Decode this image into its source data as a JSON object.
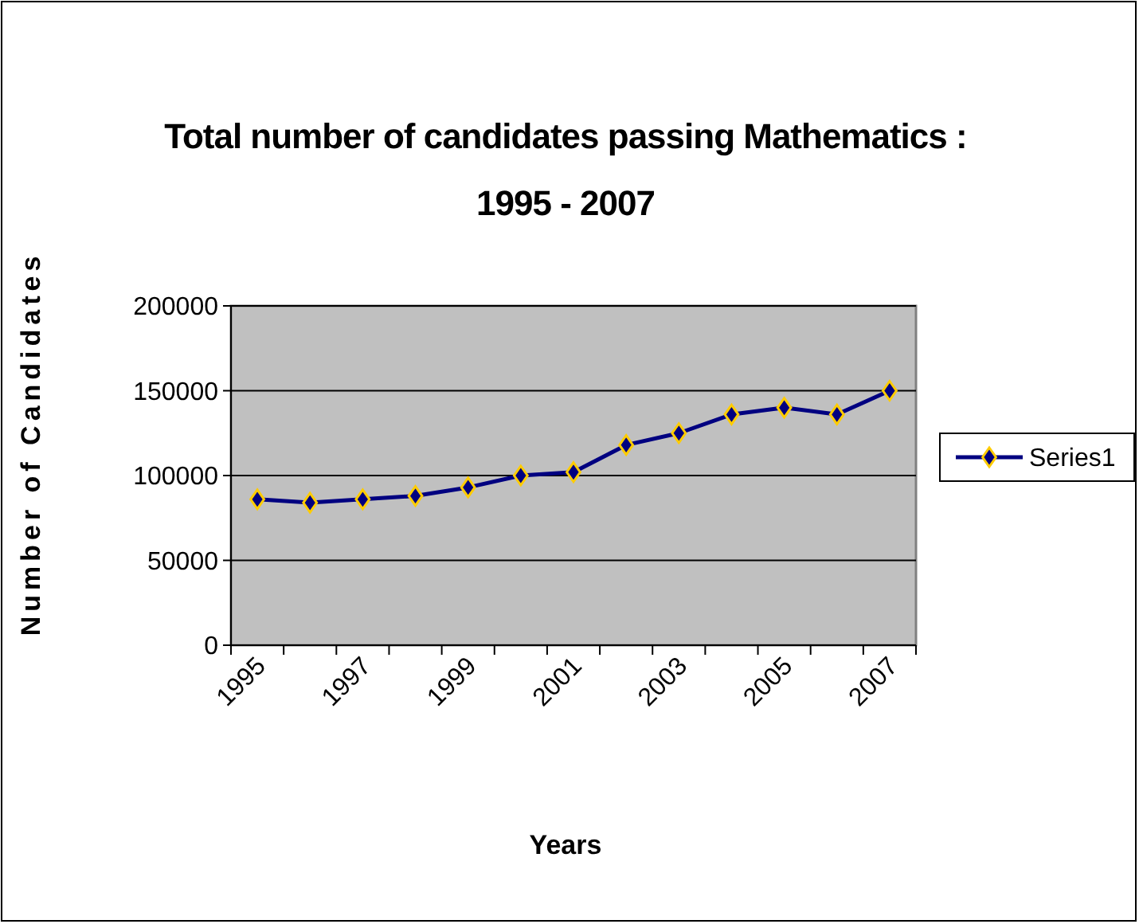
{
  "chart_data": {
    "type": "line",
    "title": "Total number of candidates passing Mathematics : 1995 - 2007",
    "xlabel": "Years",
    "ylabel": "Number of Candidates",
    "categories": [
      "1995",
      null,
      "1997",
      null,
      "1999",
      null,
      "2001",
      null,
      "2003",
      null,
      "2005",
      null,
      "2007"
    ],
    "series": [
      {
        "name": "Series1",
        "color": "#000080",
        "values": [
          86000,
          84000,
          86000,
          88000,
          93000,
          100000,
          102000,
          118000,
          125000,
          136000,
          140000,
          136000,
          150000
        ]
      }
    ],
    "ylim": [
      0,
      200000
    ],
    "yticks": [
      0,
      50000,
      100000,
      150000,
      200000
    ],
    "grid": "y",
    "legend": "right",
    "marker": "diamond",
    "line_style": "solid"
  }
}
